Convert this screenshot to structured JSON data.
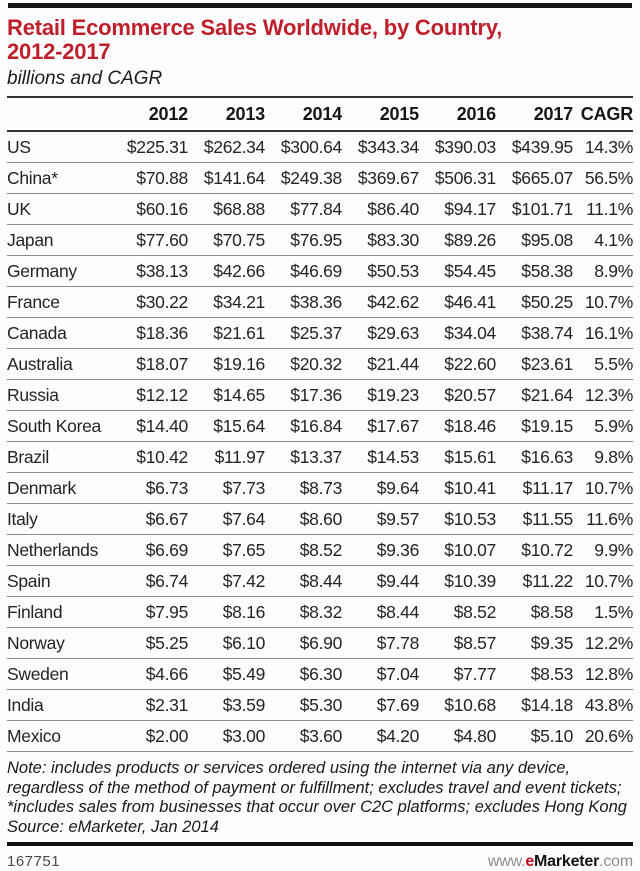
{
  "chart_data": {
    "type": "table",
    "title": "Retail Ecommerce Sales Worldwide, by Country, 2012-2017",
    "title_lines": [
      "Retail Ecommerce Sales Worldwide, by Country,",
      "2012-2017"
    ],
    "subtitle": "billions and CAGR",
    "columns": [
      "2012",
      "2013",
      "2014",
      "2015",
      "2016",
      "2017",
      "CAGR"
    ],
    "rows": [
      {
        "label": "US",
        "values": [
          "$225.31",
          "$262.34",
          "$300.64",
          "$343.34",
          "$390.03",
          "$439.95"
        ],
        "cagr": "14.3%"
      },
      {
        "label": "China*",
        "values": [
          "$70.88",
          "$141.64",
          "$249.38",
          "$369.67",
          "$506.31",
          "$665.07"
        ],
        "cagr": "56.5%"
      },
      {
        "label": "UK",
        "values": [
          "$60.16",
          "$68.88",
          "$77.84",
          "$86.40",
          "$94.17",
          "$101.71"
        ],
        "cagr": "11.1%"
      },
      {
        "label": "Japan",
        "values": [
          "$77.60",
          "$70.75",
          "$76.95",
          "$83.30",
          "$89.26",
          "$95.08"
        ],
        "cagr": "4.1%"
      },
      {
        "label": "Germany",
        "values": [
          "$38.13",
          "$42.66",
          "$46.69",
          "$50.53",
          "$54.45",
          "$58.38"
        ],
        "cagr": "8.9%"
      },
      {
        "label": "France",
        "values": [
          "$30.22",
          "$34.21",
          "$38.36",
          "$42.62",
          "$46.41",
          "$50.25"
        ],
        "cagr": "10.7%"
      },
      {
        "label": "Canada",
        "values": [
          "$18.36",
          "$21.61",
          "$25.37",
          "$29.63",
          "$34.04",
          "$38.74"
        ],
        "cagr": "16.1%"
      },
      {
        "label": "Australia",
        "values": [
          "$18.07",
          "$19.16",
          "$20.32",
          "$21.44",
          "$22.60",
          "$23.61"
        ],
        "cagr": "5.5%"
      },
      {
        "label": "Russia",
        "values": [
          "$12.12",
          "$14.65",
          "$17.36",
          "$19.23",
          "$20.57",
          "$21.64"
        ],
        "cagr": "12.3%"
      },
      {
        "label": "South Korea",
        "values": [
          "$14.40",
          "$15.64",
          "$16.84",
          "$17.67",
          "$18.46",
          "$19.15"
        ],
        "cagr": "5.9%"
      },
      {
        "label": "Brazil",
        "values": [
          "$10.42",
          "$11.97",
          "$13.37",
          "$14.53",
          "$15.61",
          "$16.63"
        ],
        "cagr": "9.8%"
      },
      {
        "label": "Denmark",
        "values": [
          "$6.73",
          "$7.73",
          "$8.73",
          "$9.64",
          "$10.41",
          "$11.17"
        ],
        "cagr": "10.7%"
      },
      {
        "label": "Italy",
        "values": [
          "$6.67",
          "$7.64",
          "$8.60",
          "$9.57",
          "$10.53",
          "$11.55"
        ],
        "cagr": "11.6%"
      },
      {
        "label": "Netherlands",
        "values": [
          "$6.69",
          "$7.65",
          "$8.52",
          "$9.36",
          "$10.07",
          "$10.72"
        ],
        "cagr": "9.9%"
      },
      {
        "label": "Spain",
        "values": [
          "$6.74",
          "$7.42",
          "$8.44",
          "$9.44",
          "$10.39",
          "$11.22"
        ],
        "cagr": "10.7%"
      },
      {
        "label": "Finland",
        "values": [
          "$7.95",
          "$8.16",
          "$8.32",
          "$8.44",
          "$8.52",
          "$8.58"
        ],
        "cagr": "1.5%"
      },
      {
        "label": "Norway",
        "values": [
          "$5.25",
          "$6.10",
          "$6.90",
          "$7.78",
          "$8.57",
          "$9.35"
        ],
        "cagr": "12.2%"
      },
      {
        "label": "Sweden",
        "values": [
          "$4.66",
          "$5.49",
          "$6.30",
          "$7.04",
          "$7.77",
          "$8.53"
        ],
        "cagr": "12.8%"
      },
      {
        "label": "India",
        "values": [
          "$2.31",
          "$3.59",
          "$5.30",
          "$7.69",
          "$10.68",
          "$14.18"
        ],
        "cagr": "43.8%"
      },
      {
        "label": "Mexico",
        "values": [
          "$2.00",
          "$3.00",
          "$3.60",
          "$4.20",
          "$4.80",
          "$5.10"
        ],
        "cagr": "20.6%"
      }
    ]
  },
  "footer": {
    "note": "Note: includes products or services ordered using the internet via any device, regardless of the method of payment or fulfillment; excludes travel and event tickets; *includes sales from businesses that occur over C2C platforms; excludes Hong Kong",
    "source": "Source: eMarketer, Jan 2014",
    "chart_id": "167751",
    "url_prefix": "www.",
    "url_e": "e",
    "url_brand": "Marketer",
    "url_suffix": ".com"
  },
  "colors": {
    "accent_red": "#bf1f2b",
    "logo_red": "#c40b1e",
    "top_bar": "#141414",
    "row_line": "#8f8f8f",
    "header_line": "#2f2f2f"
  }
}
